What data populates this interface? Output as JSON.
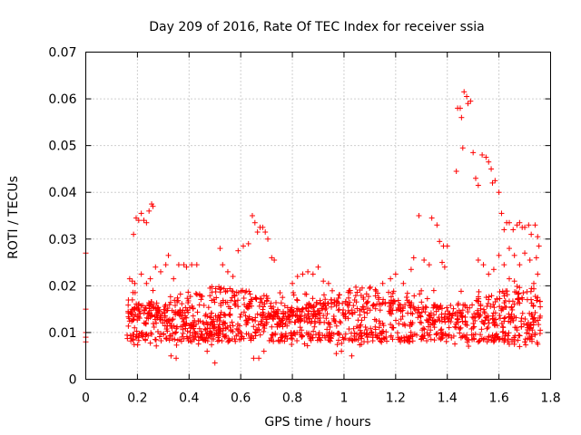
{
  "chart_data": {
    "type": "scatter",
    "title": "Day 209 of 2016, Rate Of TEC Index for receiver ssia",
    "xlabel": "GPS time / hours",
    "ylabel": "ROTI / TECUs",
    "xlim": [
      0,
      1.8
    ],
    "ylim": [
      0,
      0.07
    ],
    "xticks": [
      0,
      0.2,
      0.4,
      0.6,
      0.8,
      1,
      1.2,
      1.4,
      1.6,
      1.8
    ],
    "xtick_labels": [
      "0",
      "0.2",
      "0.4",
      "0.6",
      "0.8",
      "1",
      "1.2",
      "1.4",
      "1.6",
      "1.8"
    ],
    "yticks": [
      0,
      0.01,
      0.02,
      0.03,
      0.04,
      0.05,
      0.06,
      0.07
    ],
    "ytick_labels": [
      "0",
      "0.01",
      "0.02",
      "0.03",
      "0.04",
      "0.05",
      "0.06",
      "0.07"
    ],
    "grid": true,
    "marker": "+",
    "color": "#ff0000",
    "series": [
      {
        "name": "ROTI",
        "points": [
          [
            0.0,
            0.027
          ],
          [
            0.0,
            0.015
          ],
          [
            0.0,
            0.01
          ],
          [
            0.0,
            0.009
          ],
          [
            0.0,
            0.008
          ],
          [
            0.185,
            0.031
          ],
          [
            0.195,
            0.0345
          ],
          [
            0.205,
            0.034
          ],
          [
            0.215,
            0.0355
          ],
          [
            0.225,
            0.034
          ],
          [
            0.235,
            0.0335
          ],
          [
            0.245,
            0.036
          ],
          [
            0.255,
            0.0375
          ],
          [
            0.26,
            0.037
          ],
          [
            0.17,
            0.0215
          ],
          [
            0.18,
            0.021
          ],
          [
            0.19,
            0.0205
          ],
          [
            0.215,
            0.0225
          ],
          [
            0.235,
            0.0205
          ],
          [
            0.25,
            0.0215
          ],
          [
            0.27,
            0.024
          ],
          [
            0.29,
            0.023
          ],
          [
            0.31,
            0.0245
          ],
          [
            0.32,
            0.0265
          ],
          [
            0.34,
            0.0215
          ],
          [
            0.36,
            0.0245
          ],
          [
            0.38,
            0.0245
          ],
          [
            0.39,
            0.024
          ],
          [
            0.41,
            0.0245
          ],
          [
            0.43,
            0.0245
          ],
          [
            0.52,
            0.028
          ],
          [
            0.53,
            0.0245
          ],
          [
            0.55,
            0.023
          ],
          [
            0.57,
            0.022
          ],
          [
            0.59,
            0.0275
          ],
          [
            0.61,
            0.0285
          ],
          [
            0.63,
            0.029
          ],
          [
            0.645,
            0.035
          ],
          [
            0.655,
            0.0335
          ],
          [
            0.665,
            0.0315
          ],
          [
            0.675,
            0.0325
          ],
          [
            0.685,
            0.0325
          ],
          [
            0.695,
            0.0315
          ],
          [
            0.705,
            0.03
          ],
          [
            0.72,
            0.026
          ],
          [
            0.73,
            0.0255
          ],
          [
            0.65,
            0.0045
          ],
          [
            0.67,
            0.0045
          ],
          [
            0.69,
            0.006
          ],
          [
            0.5,
            0.0035
          ],
          [
            0.47,
            0.006
          ],
          [
            0.33,
            0.005
          ],
          [
            0.35,
            0.0045
          ],
          [
            0.8,
            0.0205
          ],
          [
            0.82,
            0.022
          ],
          [
            0.84,
            0.0225
          ],
          [
            0.86,
            0.023
          ],
          [
            0.88,
            0.0225
          ],
          [
            0.9,
            0.024
          ],
          [
            0.92,
            0.021
          ],
          [
            0.94,
            0.0205
          ],
          [
            0.97,
            0.0055
          ],
          [
            0.99,
            0.006
          ],
          [
            1.03,
            0.005
          ],
          [
            1.15,
            0.0205
          ],
          [
            1.18,
            0.0215
          ],
          [
            1.2,
            0.0225
          ],
          [
            1.23,
            0.0205
          ],
          [
            1.26,
            0.0235
          ],
          [
            1.27,
            0.026
          ],
          [
            1.29,
            0.035
          ],
          [
            1.31,
            0.0255
          ],
          [
            1.33,
            0.0245
          ],
          [
            1.34,
            0.0345
          ],
          [
            1.36,
            0.033
          ],
          [
            1.37,
            0.0295
          ],
          [
            1.385,
            0.0285
          ],
          [
            1.4,
            0.0285
          ],
          [
            1.38,
            0.025
          ],
          [
            1.39,
            0.024
          ],
          [
            1.435,
            0.0445
          ],
          [
            1.44,
            0.058
          ],
          [
            1.45,
            0.058
          ],
          [
            1.455,
            0.056
          ],
          [
            1.46,
            0.0495
          ],
          [
            1.465,
            0.0615
          ],
          [
            1.475,
            0.0605
          ],
          [
            1.48,
            0.059
          ],
          [
            1.49,
            0.0595
          ],
          [
            1.5,
            0.0485
          ],
          [
            1.51,
            0.043
          ],
          [
            1.52,
            0.0415
          ],
          [
            1.535,
            0.048
          ],
          [
            1.55,
            0.0475
          ],
          [
            1.56,
            0.0465
          ],
          [
            1.57,
            0.045
          ],
          [
            1.575,
            0.042
          ],
          [
            1.585,
            0.0425
          ],
          [
            1.6,
            0.04
          ],
          [
            1.61,
            0.0355
          ],
          [
            1.62,
            0.032
          ],
          [
            1.63,
            0.0335
          ],
          [
            1.64,
            0.0335
          ],
          [
            1.655,
            0.032
          ],
          [
            1.67,
            0.033
          ],
          [
            1.68,
            0.0335
          ],
          [
            1.69,
            0.0325
          ],
          [
            1.7,
            0.0325
          ],
          [
            1.715,
            0.033
          ],
          [
            1.725,
            0.031
          ],
          [
            1.74,
            0.033
          ],
          [
            1.75,
            0.0305
          ],
          [
            1.755,
            0.0285
          ],
          [
            1.745,
            0.026
          ],
          [
            1.75,
            0.0225
          ],
          [
            1.735,
            0.0205
          ],
          [
            1.52,
            0.0255
          ],
          [
            1.54,
            0.0245
          ],
          [
            1.56,
            0.0225
          ],
          [
            1.58,
            0.0235
          ],
          [
            1.6,
            0.0265
          ],
          [
            1.62,
            0.0245
          ],
          [
            1.64,
            0.028
          ],
          [
            1.66,
            0.0265
          ],
          [
            1.68,
            0.0245
          ],
          [
            1.7,
            0.027
          ],
          [
            1.72,
            0.0255
          ],
          [
            1.64,
            0.0215
          ],
          [
            1.66,
            0.021
          ],
          [
            1.5,
            0.0095
          ],
          [
            1.52,
            0.008
          ],
          [
            1.54,
            0.0085
          ],
          [
            1.56,
            0.009
          ],
          [
            1.58,
            0.008
          ],
          [
            1.6,
            0.0085
          ],
          [
            1.62,
            0.008
          ],
          [
            1.64,
            0.0075
          ],
          [
            1.66,
            0.0075
          ],
          [
            1.68,
            0.007
          ],
          [
            1.7,
            0.008
          ],
          [
            1.72,
            0.0085
          ],
          [
            1.74,
            0.0095
          ],
          [
            1.76,
            0.0105
          ],
          [
            1.76,
            0.0135
          ],
          [
            1.76,
            0.0155
          ],
          [
            1.75,
            0.0175
          ]
        ]
      }
    ]
  }
}
